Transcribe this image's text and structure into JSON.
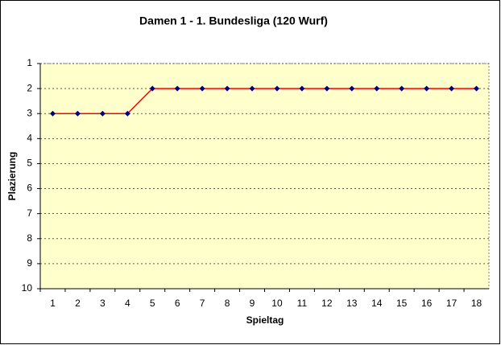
{
  "chart_data": {
    "type": "line",
    "title": "Damen 1 - 1. Bundesliga (120 Wurf)",
    "x_label": "Spieltag",
    "y_label": "Plazierung",
    "categories": [
      "1",
      "2",
      "3",
      "4",
      "5",
      "6",
      "7",
      "8",
      "9",
      "10",
      "11",
      "12",
      "13",
      "14",
      "15",
      "16",
      "17",
      "18"
    ],
    "series": [
      {
        "name": "Plazierung",
        "color": "#ff0000",
        "marker_color": "#000080",
        "values": [
          3,
          3,
          3,
          3,
          2,
          2,
          2,
          2,
          2,
          2,
          2,
          2,
          2,
          2,
          2,
          2,
          2,
          2
        ]
      }
    ],
    "ylim": [
      1,
      10
    ],
    "y_inverted": true,
    "yticks": [
      1,
      2,
      3,
      4,
      5,
      6,
      7,
      8,
      9,
      10
    ],
    "grid": true
  }
}
